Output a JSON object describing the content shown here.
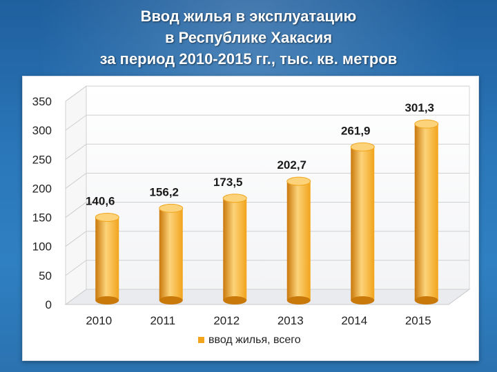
{
  "title_lines": [
    "Ввод жилья в эксплуатацию",
    "в Республике Хакасия",
    "за период 2010-2015 гг., тыс. кв. метров"
  ],
  "colors": {
    "bar": "#f2a41c",
    "bar_dark": "#c9780a",
    "bar_light": "#fcd37a",
    "background": "#2a76b8"
  },
  "chart_data": {
    "type": "bar",
    "title": "Ввод жилья в эксплуатацию в Республике Хакасия за период 2010-2015 гг., тыс. кв. метров",
    "categories": [
      "2010",
      "2011",
      "2012",
      "2013",
      "2014",
      "2015"
    ],
    "series": [
      {
        "name": "ввод жилья, всего",
        "values": [
          140.6,
          156.2,
          173.5,
          202.7,
          261.9,
          301.3
        ]
      }
    ],
    "data_labels": [
      "140,6",
      "156,2",
      "173,5",
      "202,7",
      "261,9",
      "301,3"
    ],
    "ylim": [
      0,
      350
    ],
    "yticks": [
      0,
      50,
      100,
      150,
      200,
      250,
      300,
      350
    ],
    "grid": true,
    "legend": "bottom",
    "xlabel": "",
    "ylabel": ""
  }
}
